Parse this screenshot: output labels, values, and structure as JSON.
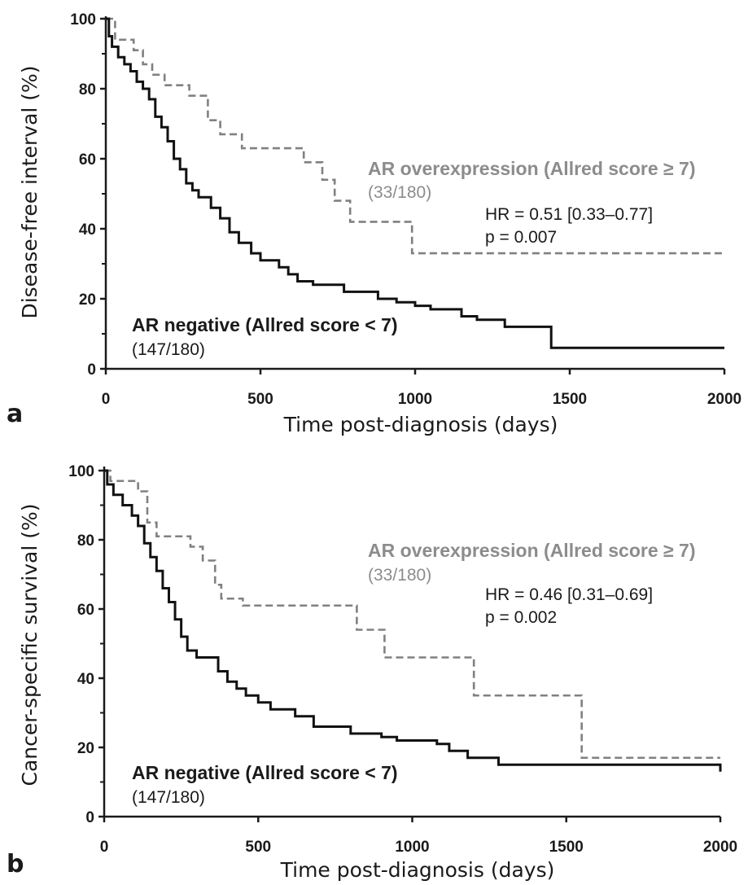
{
  "chart_data": [
    {
      "type": "line",
      "panel_label": "a",
      "xlabel": "Time post-diagnosis (days)",
      "ylabel": "Disease-free interval (%)",
      "xlim": [
        0,
        2000
      ],
      "ylim": [
        0,
        100
      ],
      "x_ticks": [
        "0",
        "500",
        "1000",
        "1500",
        "2000"
      ],
      "y_ticks": [
        "0",
        "20",
        "40",
        "60",
        "80",
        "100"
      ],
      "hr_text": "HR =  0.51 [0.33–0.77]",
      "p_text": "p = 0.007",
      "series": [
        {
          "name": "AR overexpression (Allred score ≥ 7)",
          "count": "(33/180)",
          "style": "dashed",
          "color": "#808080",
          "x": [
            0,
            30,
            90,
            120,
            150,
            190,
            270,
            330,
            370,
            440,
            640,
            700,
            740,
            790,
            990,
            2000
          ],
          "y": [
            100,
            94,
            91,
            87,
            84,
            81,
            78,
            71,
            67,
            63,
            59,
            54,
            48,
            42,
            33,
            33
          ]
        },
        {
          "name": "AR negative (Allred score < 7)",
          "count": "(147/180)",
          "style": "solid",
          "color": "#111111",
          "x": [
            0,
            10,
            20,
            40,
            60,
            80,
            100,
            120,
            140,
            160,
            180,
            200,
            220,
            240,
            260,
            280,
            300,
            340,
            370,
            400,
            430,
            470,
            500,
            560,
            590,
            620,
            670,
            770,
            880,
            940,
            1000,
            1050,
            1150,
            1200,
            1290,
            1440,
            2000
          ],
          "y": [
            100,
            95,
            92,
            89,
            87,
            85,
            82,
            80,
            77,
            72,
            69,
            65,
            60,
            57,
            53,
            51,
            49,
            46,
            43,
            39,
            36,
            33,
            31,
            29,
            27,
            25,
            24,
            22,
            20,
            19,
            18,
            17,
            15,
            14,
            12,
            6,
            6
          ]
        }
      ]
    },
    {
      "type": "line",
      "panel_label": "b",
      "xlabel": "Time post-diagnosis (days)",
      "ylabel": "Cancer-specific survival (%)",
      "xlim": [
        0,
        2000
      ],
      "ylim": [
        0,
        100
      ],
      "x_ticks": [
        "0",
        "500",
        "1000",
        "1500",
        "2000"
      ],
      "y_ticks": [
        "0",
        "20",
        "40",
        "60",
        "80",
        "100"
      ],
      "hr_text": "HR =  0.46 [0.31–0.69]",
      "p_text": "p = 0.002",
      "series": [
        {
          "name": "AR overexpression (Allred score ≥ 7)",
          "count": "(33/180)",
          "style": "dashed",
          "color": "#808080",
          "x": [
            0,
            20,
            110,
            140,
            170,
            280,
            320,
            360,
            380,
            450,
            820,
            910,
            1200,
            1550,
            2000
          ],
          "y": [
            100,
            97,
            94,
            85,
            81,
            78,
            74,
            67,
            63,
            61,
            54,
            46,
            35,
            17,
            17
          ]
        },
        {
          "name": "AR negative (Allred score < 7)",
          "count": "(147/180)",
          "style": "solid",
          "color": "#111111",
          "x": [
            0,
            10,
            30,
            60,
            90,
            110,
            130,
            150,
            170,
            190,
            210,
            230,
            250,
            270,
            300,
            370,
            400,
            430,
            460,
            500,
            540,
            620,
            680,
            800,
            900,
            950,
            1080,
            1120,
            1180,
            1280,
            2000
          ],
          "y": [
            100,
            96,
            93,
            90,
            87,
            84,
            79,
            75,
            71,
            66,
            62,
            57,
            52,
            48,
            46,
            42,
            39,
            37,
            35,
            33,
            31,
            29,
            26,
            24,
            23,
            22,
            21,
            19,
            17,
            15,
            13
          ]
        }
      ]
    }
  ]
}
